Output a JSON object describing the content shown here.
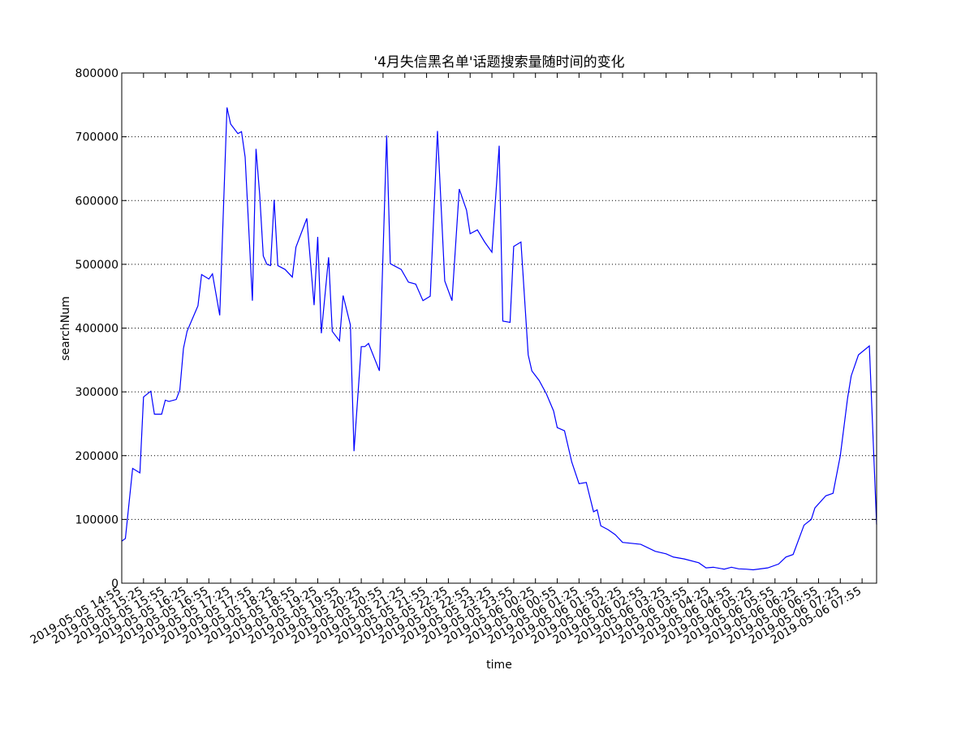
{
  "chart_data": {
    "type": "line",
    "title": "'4月失信黑名单'话题搜索量随时间的变化",
    "xlabel": "time",
    "ylabel": "searchNum",
    "color": "#0000ff",
    "grid": true,
    "x": [
      "2019-05-05 14:55",
      "2019-05-05 15:00",
      "2019-05-05 15:10",
      "2019-05-05 15:20",
      "2019-05-05 15:25",
      "2019-05-05 15:35",
      "2019-05-05 15:40",
      "2019-05-05 15:50",
      "2019-05-05 15:55",
      "2019-05-05 16:00",
      "2019-05-05 16:10",
      "2019-05-05 16:15",
      "2019-05-05 16:20",
      "2019-05-05 16:25",
      "2019-05-05 16:40",
      "2019-05-05 16:45",
      "2019-05-05 16:55",
      "2019-05-05 17:00",
      "2019-05-05 17:10",
      "2019-05-05 17:20",
      "2019-05-05 17:25",
      "2019-05-05 17:35",
      "2019-05-05 17:40",
      "2019-05-05 17:45",
      "2019-05-05 17:55",
      "2019-05-05 18:00",
      "2019-05-05 18:05",
      "2019-05-05 18:10",
      "2019-05-05 18:15",
      "2019-05-05 18:20",
      "2019-05-05 18:25",
      "2019-05-05 18:30",
      "2019-05-05 18:40",
      "2019-05-05 18:50",
      "2019-05-05 18:55",
      "2019-05-05 19:10",
      "2019-05-05 19:20",
      "2019-05-05 19:25",
      "2019-05-05 19:30",
      "2019-05-05 19:40",
      "2019-05-05 19:45",
      "2019-05-05 19:55",
      "2019-05-05 20:00",
      "2019-05-05 20:10",
      "2019-05-05 20:15",
      "2019-05-05 20:25",
      "2019-05-05 20:30",
      "2019-05-05 20:35",
      "2019-05-05 20:50",
      "2019-05-05 21:00",
      "2019-05-05 21:05",
      "2019-05-05 21:20",
      "2019-05-05 21:30",
      "2019-05-05 21:40",
      "2019-05-05 21:50",
      "2019-05-05 22:00",
      "2019-05-05 22:10",
      "2019-05-05 22:20",
      "2019-05-05 22:30",
      "2019-05-05 22:40",
      "2019-05-05 22:50",
      "2019-05-05 22:55",
      "2019-05-05 23:05",
      "2019-05-05 23:15",
      "2019-05-05 23:25",
      "2019-05-05 23:35",
      "2019-05-05 23:40",
      "2019-05-05 23:50",
      "2019-05-05 23:55",
      "2019-05-06 00:05",
      "2019-05-06 00:15",
      "2019-05-06 00:20",
      "2019-05-06 00:30",
      "2019-05-06 00:40",
      "2019-05-06 00:50",
      "2019-05-06 00:55",
      "2019-05-06 01:05",
      "2019-05-06 01:15",
      "2019-05-06 01:25",
      "2019-05-06 01:35",
      "2019-05-06 01:45",
      "2019-05-06 01:50",
      "2019-05-06 01:55",
      "2019-05-06 02:05",
      "2019-05-06 02:15",
      "2019-05-06 02:25",
      "2019-05-06 02:50",
      "2019-05-06 03:10",
      "2019-05-06 03:25",
      "2019-05-06 03:35",
      "2019-05-06 03:50",
      "2019-05-06 04:10",
      "2019-05-06 04:20",
      "2019-05-06 04:30",
      "2019-05-06 04:45",
      "2019-05-06 04:55",
      "2019-05-06 05:05",
      "2019-05-06 05:15",
      "2019-05-06 05:25",
      "2019-05-06 05:45",
      "2019-05-06 06:00",
      "2019-05-06 06:10",
      "2019-05-06 06:20",
      "2019-05-06 06:35",
      "2019-05-06 06:45",
      "2019-05-06 06:50",
      "2019-05-06 07:05",
      "2019-05-06 07:15",
      "2019-05-06 07:25",
      "2019-05-06 07:35",
      "2019-05-06 07:40",
      "2019-05-06 07:50",
      "2019-05-06 08:05",
      "2019-05-06 08:15"
    ],
    "values": [
      66000,
      70000,
      180000,
      173000,
      292000,
      301000,
      265000,
      265000,
      287000,
      285000,
      288000,
      303000,
      368000,
      395000,
      435000,
      484000,
      477000,
      485000,
      420000,
      746000,
      720000,
      705000,
      708000,
      668000,
      443000,
      681000,
      610000,
      513000,
      500000,
      498000,
      601000,
      498000,
      492000,
      480000,
      527000,
      572000,
      436000,
      543000,
      392000,
      511000,
      395000,
      380000,
      451000,
      405000,
      207000,
      371000,
      371000,
      376000,
      333000,
      702000,
      501000,
      492000,
      472000,
      469000,
      443000,
      450000,
      709000,
      474000,
      443000,
      618000,
      585000,
      548000,
      554000,
      535000,
      519000,
      686000,
      411000,
      409000,
      528000,
      535000,
      358000,
      333000,
      318000,
      297000,
      270000,
      244000,
      239000,
      190000,
      156000,
      158000,
      112000,
      115000,
      90000,
      84000,
      76000,
      64000,
      61000,
      50000,
      46000,
      41000,
      38000,
      32000,
      24000,
      25000,
      22000,
      25000,
      22500,
      22000,
      21000,
      24000,
      30000,
      41000,
      45000,
      91000,
      100000,
      118000,
      137000,
      141000,
      200000,
      290000,
      325000,
      358000,
      372000,
      92000
    ],
    "xlim": [
      "2019-05-05 14:55",
      "2019-05-06 08:15"
    ],
    "xticks": [
      "2019-05-05 14:55",
      "2019-05-05 15:25",
      "2019-05-05 15:55",
      "2019-05-05 16:25",
      "2019-05-05 16:55",
      "2019-05-05 17:25",
      "2019-05-05 17:55",
      "2019-05-05 18:25",
      "2019-05-05 18:55",
      "2019-05-05 19:25",
      "2019-05-05 19:55",
      "2019-05-05 20:25",
      "2019-05-05 20:55",
      "2019-05-05 21:25",
      "2019-05-05 21:55",
      "2019-05-05 22:25",
      "2019-05-05 22:55",
      "2019-05-05 23:25",
      "2019-05-05 23:55",
      "2019-05-06 00:25",
      "2019-05-06 00:55",
      "2019-05-06 01:25",
      "2019-05-06 01:55",
      "2019-05-06 02:25",
      "2019-05-06 02:55",
      "2019-05-06 03:25",
      "2019-05-06 03:55",
      "2019-05-06 04:25",
      "2019-05-06 04:55",
      "2019-05-06 05:25",
      "2019-05-06 05:55",
      "2019-05-06 06:25",
      "2019-05-06 06:55",
      "2019-05-06 07:25",
      "2019-05-06 07:55"
    ],
    "ylim": [
      0,
      800000
    ],
    "yticks": [
      0,
      100000,
      200000,
      300000,
      400000,
      500000,
      600000,
      700000,
      800000
    ]
  }
}
